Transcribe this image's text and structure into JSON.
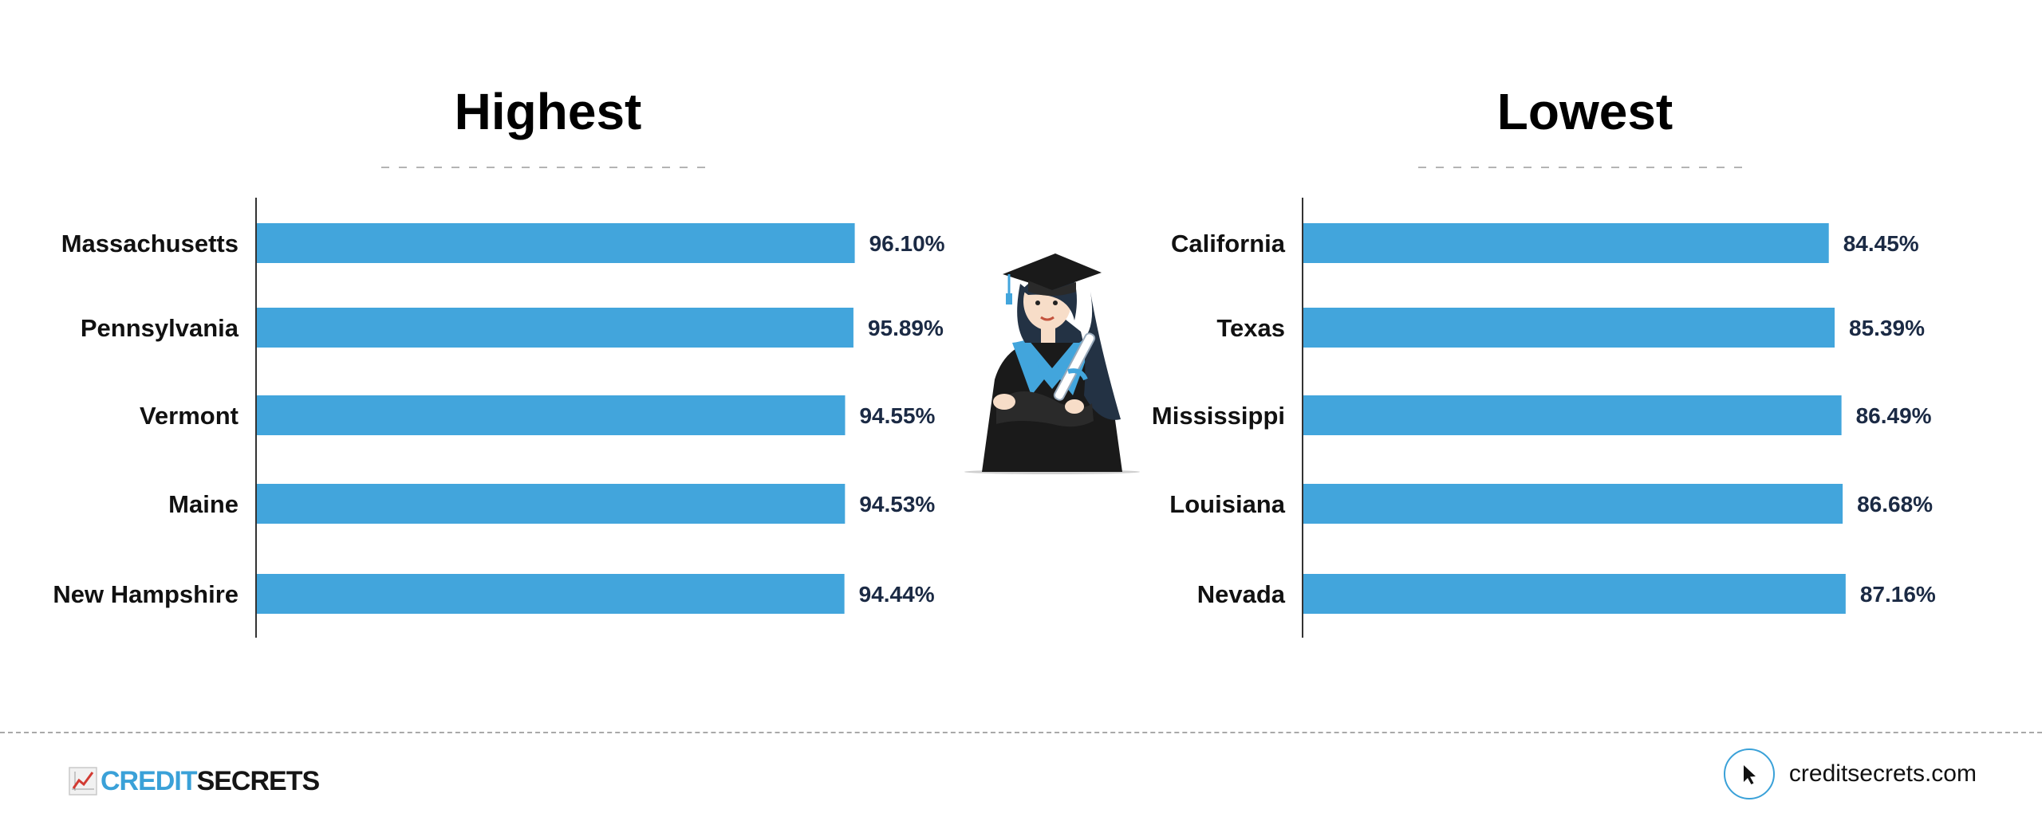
{
  "chart_data": [
    {
      "type": "bar",
      "orientation": "horizontal",
      "title": "Highest",
      "categories": [
        "Massachusetts",
        "Pennsylvania",
        "Vermont",
        "Maine",
        "New Hampshire"
      ],
      "values": [
        96.1,
        95.89,
        94.55,
        94.53,
        94.44
      ],
      "value_labels": [
        "96.10%",
        "95.89%",
        "94.55%",
        "94.53%",
        "94.44%"
      ],
      "xlim": [
        0,
        100
      ],
      "grid": false,
      "legend": "none",
      "bar_color": "#42a5dc"
    },
    {
      "type": "bar",
      "orientation": "horizontal",
      "title": "Lowest",
      "categories": [
        "California",
        "Texas",
        "Mississippi",
        "Louisiana",
        "Nevada"
      ],
      "values": [
        84.45,
        85.39,
        86.49,
        86.68,
        87.16
      ],
      "value_labels": [
        "84.45%",
        "85.39%",
        "86.49%",
        "86.68%",
        "87.16%"
      ],
      "xlim": [
        0,
        100
      ],
      "grid": false,
      "legend": "none",
      "bar_color": "#42a5dc"
    }
  ],
  "footer": {
    "brand_credit": "CREDIT",
    "brand_secrets": "SECRETS",
    "website": "creditsecrets.com"
  },
  "icons": {
    "illustration": "graduate-illustration",
    "logo": "chart-trend-icon",
    "cursor": "cursor-arrow-icon"
  },
  "colors": {
    "accent": "#42a5dc",
    "text_dark": "#111111",
    "value_text": "#1b2a44"
  }
}
